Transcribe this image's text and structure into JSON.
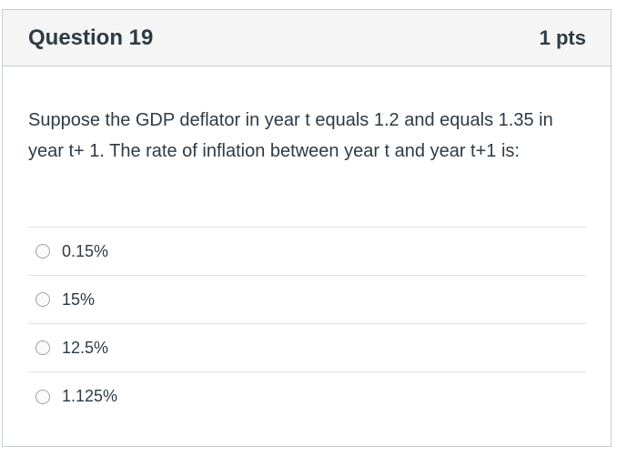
{
  "question": {
    "title": "Question 19",
    "points": "1 pts",
    "text": "Suppose the GDP deflator in year t equals 1.2 and equals 1.35 in year t+ 1. The rate of inflation between year t and year t+1 is:",
    "answers": [
      {
        "label": "0.15%"
      },
      {
        "label": "15%"
      },
      {
        "label": "12.5%"
      },
      {
        "label": "1.125%"
      }
    ]
  }
}
